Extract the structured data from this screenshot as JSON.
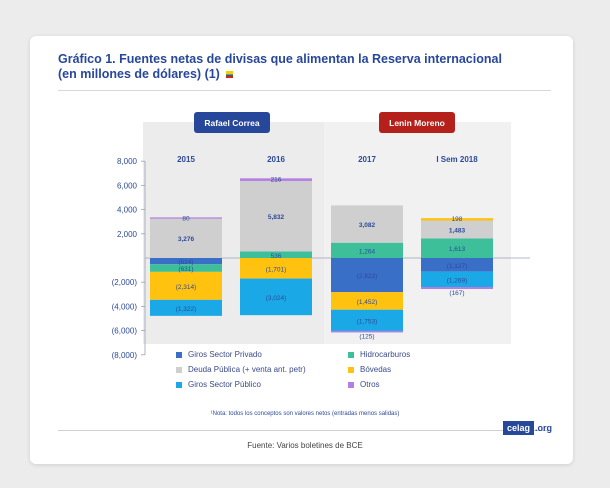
{
  "title_line1": "Gráfico 1. Fuentes netas de divisas que alimentan la Reserva internacional",
  "title_line2": "(en millones de dólares) (1)",
  "note": "¹Nota: todos los conceptos son valores netos (entradas menos salidas)",
  "source": "Fuente: Varios boletines de BCE",
  "logo": {
    "brand": "celag",
    "tld": ".org"
  },
  "colors": {
    "Giros Sector Privado": "#3a6fc8",
    "Deuda Pública (+ venta ant. petr)": "#cfcfcf",
    "Giros Sector Público": "#1ba8e6",
    "Hidrocarburos": "#3dbf9a",
    "Bóvedas": "#ffc20e",
    "Otros": "#b57ee0",
    "correa_panel": "#ececec",
    "moreno_panel": "#f1f1f1",
    "correa_badge": "#27479b",
    "moreno_badge": "#b5201a"
  },
  "chart_data": {
    "type": "bar",
    "stacked": true,
    "categories": [
      "2015",
      "2016",
      "2017",
      "I Sem 2018"
    ],
    "periods": [
      {
        "label": "Rafael Correa",
        "categories": [
          "2015",
          "2016"
        ]
      },
      {
        "label": "Lenin Moreno",
        "categories": [
          "2017",
          "I Sem 2018"
        ]
      }
    ],
    "ylim": [
      -8000,
      8000
    ],
    "yticks": [
      {
        "value": 8000,
        "label": "8,000"
      },
      {
        "value": 6000,
        "label": "6,000"
      },
      {
        "value": 4000,
        "label": "4,000"
      },
      {
        "value": 2000,
        "label": "2,000"
      },
      {
        "value": -2000,
        "label": "(2,000)"
      },
      {
        "value": -4000,
        "label": "(4,000)"
      },
      {
        "value": -6000,
        "label": "(6,000)"
      },
      {
        "value": -8000,
        "label": "(8,000)"
      }
    ],
    "series": [
      {
        "name": "Giros Sector Privado",
        "values": [
          -514,
          0,
          -2823,
          -1127
        ],
        "labels": [
          "(514)",
          "",
          "(2,823)",
          "(1,127)"
        ]
      },
      {
        "name": "Deuda Pública (+ venta ant. petr)",
        "values": [
          3276,
          5832,
          3082,
          1483
        ],
        "labels": [
          "3,276",
          "5,832",
          "3,082",
          "1,483"
        ]
      },
      {
        "name": "Giros Sector Público",
        "values": [
          -1322,
          -3024,
          -1753,
          -1269
        ],
        "labels": [
          "(1,322)",
          "(3,024)",
          "(1,753)",
          "(1,269)"
        ]
      },
      {
        "name": "Hidrocarburos",
        "values": [
          -631,
          536,
          1264,
          1613
        ],
        "labels": [
          "(631)",
          "536",
          "1,264",
          "1,613"
        ]
      },
      {
        "name": "Bóvedas",
        "values": [
          -2314,
          -1701,
          -1452,
          198
        ],
        "labels": [
          "(2,314)",
          "(1,701)",
          "(1,452)",
          "198"
        ]
      },
      {
        "name": "Otros",
        "values": [
          80,
          216,
          -125,
          -167
        ],
        "labels": [
          "80",
          "216",
          "(125)",
          "(167)"
        ]
      }
    ]
  }
}
